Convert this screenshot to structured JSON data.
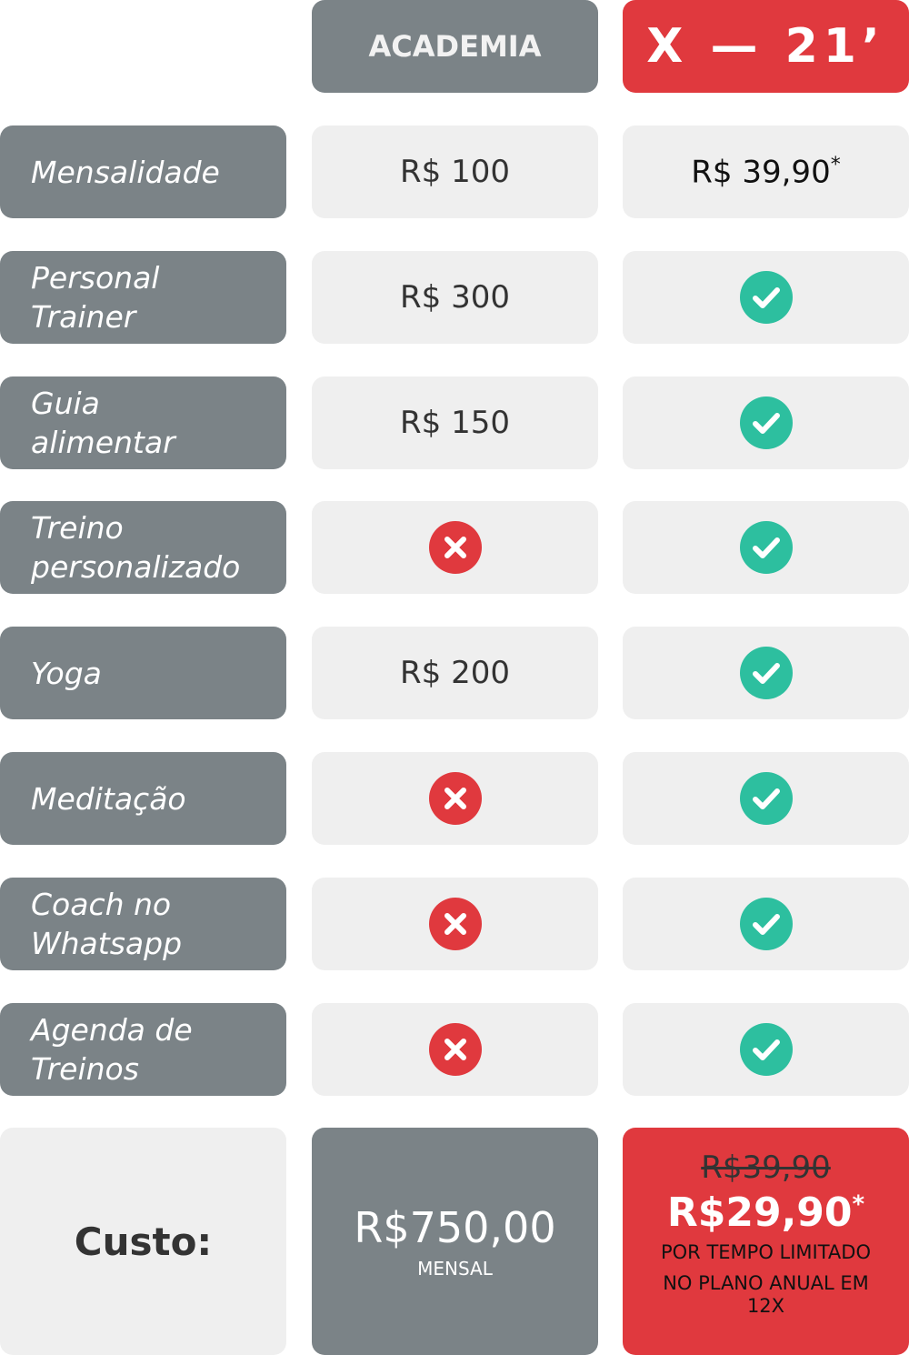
{
  "header": {
    "columns": [
      "ACADEMIA",
      "X — 21’"
    ]
  },
  "rows": [
    {
      "label": [
        "Mensalidade"
      ],
      "academia": "R$ 100",
      "x21": "R$ 39,90",
      "x21_note": "*"
    },
    {
      "label": [
        "Personal",
        "Trainer"
      ],
      "academia": "R$ 300",
      "x21": null
    },
    {
      "label": [
        "Guia",
        "alimentar"
      ],
      "academia": "R$ 150",
      "x21": null
    },
    {
      "label": [
        "Treino",
        "personalizado"
      ],
      "academia": null,
      "x21": null
    },
    {
      "label": [
        "Yoga"
      ],
      "academia": "R$ 200",
      "x21": null
    },
    {
      "label": [
        "Meditação"
      ],
      "academia": null,
      "x21": null
    },
    {
      "label": [
        "Coach no",
        "Whatsapp"
      ],
      "academia": null,
      "x21": null
    },
    {
      "label": [
        "Agenda de",
        "Treinos"
      ],
      "academia": null,
      "x21": null
    }
  ],
  "footer": {
    "label": "Custo:",
    "academia_price": "R$750,00",
    "academia_note": "MENSAL",
    "x21_old_price": "R$39,90",
    "x21_price": "R$29,90",
    "x21_price_note": "*",
    "x21_note1": "POR TEMPO LIMITADO",
    "x21_note2": "NO PLANO ANUAL EM 12X"
  }
}
